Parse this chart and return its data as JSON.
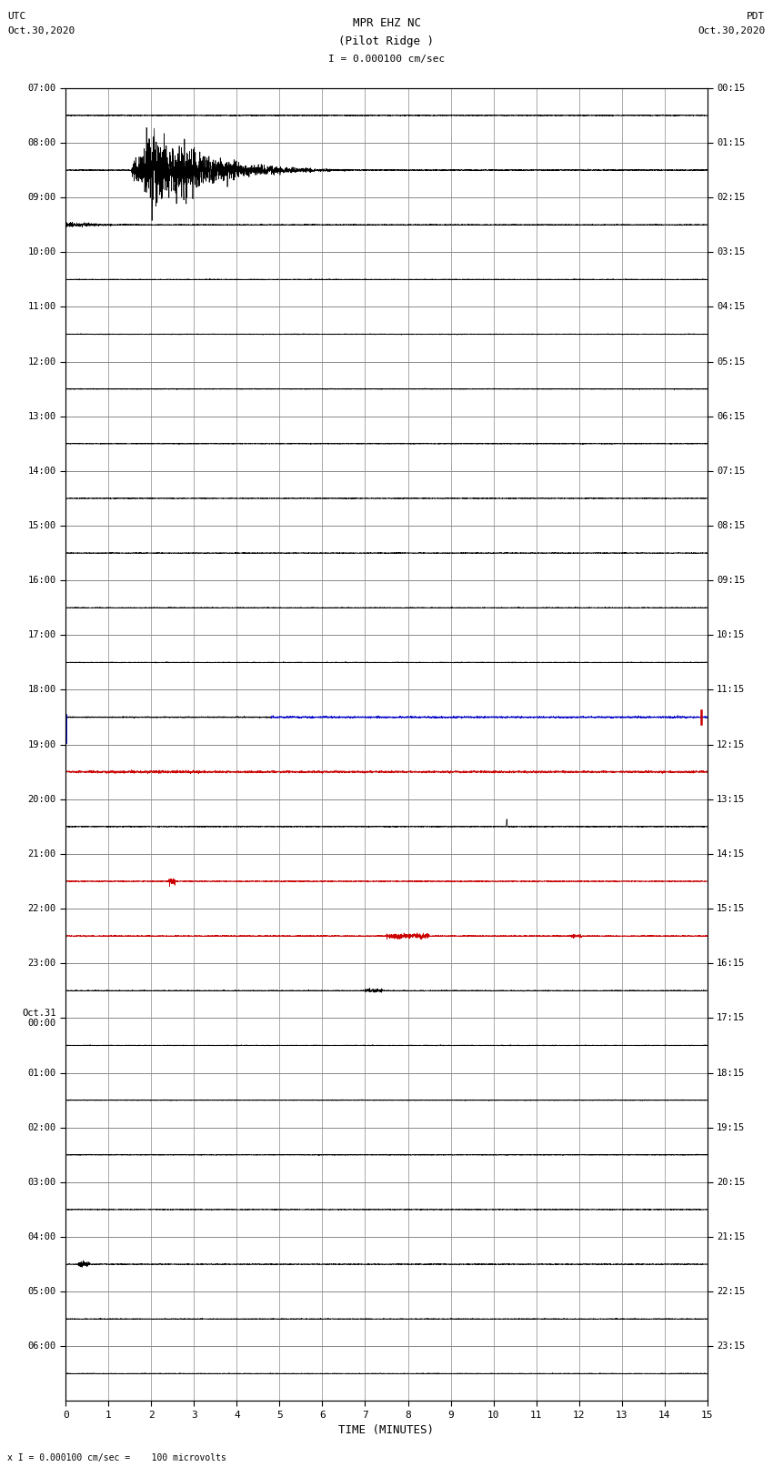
{
  "title_line1": "MPR EHZ NC",
  "title_line2": "(Pilot Ridge )",
  "scale_label": "I = 0.000100 cm/sec",
  "left_date_line1": "UTC",
  "left_date_line2": "Oct.30,2020",
  "right_date_line1": "PDT",
  "right_date_line2": "Oct.30,2020",
  "footer_label": "x I = 0.000100 cm/sec =    100 microvolts",
  "xlabel": "TIME (MINUTES)",
  "bg_color": "#ffffff",
  "grid_major_color": "#888888",
  "grid_minor_color": "#bbbbbb",
  "seismo_color_black": "#000000",
  "seismo_color_red": "#cc0000",
  "seismo_color_blue": "#0000cc",
  "fig_width": 8.5,
  "fig_height": 16.13,
  "num_rows": 24,
  "left_row_labels": [
    "07:00",
    "08:00",
    "09:00",
    "10:00",
    "11:00",
    "12:00",
    "13:00",
    "14:00",
    "15:00",
    "16:00",
    "17:00",
    "18:00",
    "19:00",
    "20:00",
    "21:00",
    "22:00",
    "23:00",
    "Oct.31\n00:00",
    "01:00",
    "02:00",
    "03:00",
    "04:00",
    "05:00",
    "06:00"
  ],
  "right_row_labels": [
    "00:15",
    "01:15",
    "02:15",
    "03:15",
    "04:15",
    "05:15",
    "06:15",
    "07:15",
    "08:15",
    "09:15",
    "10:15",
    "11:15",
    "12:15",
    "13:15",
    "14:15",
    "15:15",
    "16:15",
    "17:15",
    "18:15",
    "19:15",
    "20:15",
    "21:15",
    "22:15",
    "23:15"
  ],
  "x_min": 0,
  "x_max": 15
}
